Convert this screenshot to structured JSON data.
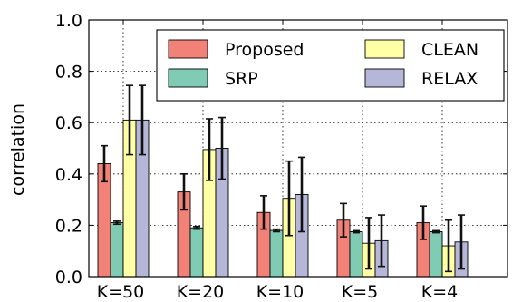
{
  "chart_data": {
    "type": "bar",
    "ylabel": "correlation",
    "ylim": [
      0,
      1.0
    ],
    "yticks": [
      "0.0",
      "0.2",
      "0.4",
      "0.6",
      "0.8",
      "1.0"
    ],
    "ytick_values": [
      0,
      0.2,
      0.4,
      0.6,
      0.8,
      1.0
    ],
    "categories": [
      "K=50",
      "K=20",
      "K=10",
      "K=5",
      "K=4"
    ],
    "grid": "dotted",
    "legend_position": "top-right",
    "series": [
      {
        "name": "Proposed",
        "color": "#f28278",
        "values": [
          0.44,
          0.33,
          0.25,
          0.22,
          0.21
        ],
        "err": [
          0.07,
          0.07,
          0.065,
          0.065,
          0.065
        ]
      },
      {
        "name": "SRP",
        "color": "#7fcbb4",
        "values": [
          0.21,
          0.19,
          0.18,
          0.175,
          0.175
        ],
        "err": [
          0.006,
          0.005,
          0.005,
          0.004,
          0.004
        ]
      },
      {
        "name": "CLEAN",
        "color": "#ffffa6",
        "values": [
          0.61,
          0.495,
          0.305,
          0.13,
          0.12
        ],
        "err": [
          0.135,
          0.12,
          0.145,
          0.1,
          0.1
        ]
      },
      {
        "name": "RELAX",
        "color": "#b6b6d8",
        "values": [
          0.61,
          0.5,
          0.32,
          0.14,
          0.135
        ],
        "err": [
          0.135,
          0.12,
          0.145,
          0.1,
          0.105
        ]
      }
    ]
  }
}
